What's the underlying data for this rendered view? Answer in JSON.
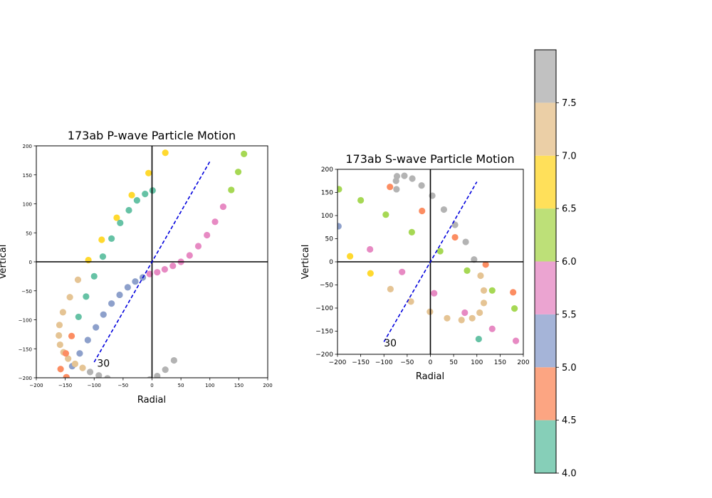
{
  "chart_data": [
    {
      "type": "scatter",
      "title": "173ab P-wave Particle Motion",
      "xlabel": "Radial",
      "ylabel": "Vertical",
      "xlim": [
        -200,
        200
      ],
      "ylim": [
        -200,
        200
      ],
      "xticks": [
        -200,
        -150,
        -100,
        -50,
        0,
        50,
        100,
        150,
        200
      ],
      "yticks": [
        -200,
        -150,
        -100,
        -50,
        0,
        50,
        100,
        150,
        200
      ],
      "xtick_labels": [
        "−200",
        "−150",
        "−100",
        "−50",
        "0",
        "50",
        "100",
        "150",
        "200"
      ],
      "ytick_labels": [
        "−200",
        "−150",
        "−100",
        "−50",
        "0",
        "50",
        "100",
        "150",
        "200"
      ],
      "angle_label": "30",
      "angle_label_pos": [
        -95,
        -175
      ],
      "angle_line": {
        "x": [
          -100,
          100
        ],
        "y": [
          -173,
          173
        ]
      },
      "points": [
        {
          "x": 23,
          "y": 188,
          "c": 6.75
        },
        {
          "x": -6,
          "y": 153,
          "c": 6.75
        },
        {
          "x": -35,
          "y": 115,
          "c": 6.75
        },
        {
          "x": -61,
          "y": 76,
          "c": 6.75
        },
        {
          "x": -87,
          "y": 38,
          "c": 6.75
        },
        {
          "x": -110,
          "y": 3,
          "c": 6.75
        },
        {
          "x": 159,
          "y": 186,
          "c": 6.25
        },
        {
          "x": 149,
          "y": 155,
          "c": 6.25
        },
        {
          "x": 137,
          "y": 124,
          "c": 6.25
        },
        {
          "x": 1,
          "y": 123,
          "c": 4.25
        },
        {
          "x": -12,
          "y": 117,
          "c": 4.25
        },
        {
          "x": -26,
          "y": 106,
          "c": 4.25
        },
        {
          "x": -40,
          "y": 89,
          "c": 4.25
        },
        {
          "x": -55,
          "y": 67,
          "c": 4.25
        },
        {
          "x": -70,
          "y": 40,
          "c": 4.25
        },
        {
          "x": -85,
          "y": 9,
          "c": 4.25
        },
        {
          "x": -100,
          "y": -25,
          "c": 4.25
        },
        {
          "x": -114,
          "y": -60,
          "c": 4.25
        },
        {
          "x": -127,
          "y": -95,
          "c": 4.25
        },
        {
          "x": 123,
          "y": 95,
          "c": 5.75
        },
        {
          "x": 109,
          "y": 69,
          "c": 5.75
        },
        {
          "x": 95,
          "y": 46,
          "c": 5.75
        },
        {
          "x": 80,
          "y": 27,
          "c": 5.75
        },
        {
          "x": 65,
          "y": 11,
          "c": 5.75
        },
        {
          "x": 50,
          "y": 0,
          "c": 5.75
        },
        {
          "x": 36,
          "y": -7,
          "c": 5.75
        },
        {
          "x": 22,
          "y": -13,
          "c": 5.75
        },
        {
          "x": 9,
          "y": -18,
          "c": 5.75
        },
        {
          "x": -4,
          "y": -21,
          "c": 5.75
        },
        {
          "x": -16,
          "y": -27,
          "c": 5.25
        },
        {
          "x": -29,
          "y": -34,
          "c": 5.25
        },
        {
          "x": -42,
          "y": -44,
          "c": 5.25
        },
        {
          "x": -56,
          "y": -57,
          "c": 5.25
        },
        {
          "x": -70,
          "y": -72,
          "c": 5.25
        },
        {
          "x": -84,
          "y": -91,
          "c": 5.25
        },
        {
          "x": -97,
          "y": -113,
          "c": 5.25
        },
        {
          "x": -111,
          "y": -135,
          "c": 5.25
        },
        {
          "x": -125,
          "y": -158,
          "c": 5.25
        },
        {
          "x": -138,
          "y": -180,
          "c": 5.25
        },
        {
          "x": -128,
          "y": -31,
          "c": 7.25
        },
        {
          "x": -142,
          "y": -61,
          "c": 7.25
        },
        {
          "x": -154,
          "y": -87,
          "c": 7.25
        },
        {
          "x": -160,
          "y": -109,
          "c": 7.25
        },
        {
          "x": -161,
          "y": -127,
          "c": 7.25
        },
        {
          "x": -159,
          "y": -143,
          "c": 7.25
        },
        {
          "x": -153,
          "y": -156,
          "c": 7.25
        },
        {
          "x": -145,
          "y": -167,
          "c": 7.25
        },
        {
          "x": -133,
          "y": -176,
          "c": 7.25
        },
        {
          "x": -120,
          "y": -183,
          "c": 7.25
        },
        {
          "x": -139,
          "y": -128,
          "c": 4.75
        },
        {
          "x": -149,
          "y": -158,
          "c": 4.75
        },
        {
          "x": -158,
          "y": -185,
          "c": 4.75
        },
        {
          "x": -148,
          "y": -199,
          "c": 4.75
        },
        {
          "x": 38,
          "y": -170,
          "c": 7.75
        },
        {
          "x": 23,
          "y": -186,
          "c": 7.75
        },
        {
          "x": 9,
          "y": -197,
          "c": 7.75
        },
        {
          "x": -4,
          "y": -203,
          "c": 7.75
        },
        {
          "x": -107,
          "y": -190,
          "c": 7.75
        },
        {
          "x": -92,
          "y": -196,
          "c": 7.75
        },
        {
          "x": -77,
          "y": -201,
          "c": 7.75
        }
      ]
    },
    {
      "type": "scatter",
      "title": "173ab S-wave Particle Motion",
      "xlabel": "Radial",
      "ylabel": "Vertical",
      "xlim": [
        -200,
        200
      ],
      "ylim": [
        -200,
        200
      ],
      "xticks": [
        -200,
        -150,
        -100,
        -50,
        0,
        50,
        100,
        150,
        200
      ],
      "yticks": [
        -200,
        -150,
        -100,
        -50,
        0,
        50,
        100,
        150,
        200
      ],
      "xtick_labels": [
        "−200",
        "−150",
        "−100",
        "−50",
        "0",
        "50",
        "100",
        "150",
        "200"
      ],
      "ytick_labels": [
        "−200",
        "−150",
        "−100",
        "−50",
        "0",
        "50",
        "100",
        "150",
        "200"
      ],
      "angle_label": "30",
      "angle_label_pos": [
        -100,
        -175
      ],
      "angle_line": {
        "x": [
          -100,
          100
        ],
        "y": [
          -173,
          173
        ]
      },
      "points": [
        {
          "x": -197,
          "y": 157,
          "c": 6.25
        },
        {
          "x": -150,
          "y": 133,
          "c": 6.25
        },
        {
          "x": -96,
          "y": 102,
          "c": 6.25
        },
        {
          "x": -40,
          "y": 64,
          "c": 6.25
        },
        {
          "x": 21,
          "y": 23,
          "c": 6.25
        },
        {
          "x": 79,
          "y": -19,
          "c": 6.25
        },
        {
          "x": 133,
          "y": -62,
          "c": 6.25
        },
        {
          "x": 181,
          "y": -101,
          "c": 6.25
        },
        {
          "x": -87,
          "y": 162,
          "c": 4.75
        },
        {
          "x": -18,
          "y": 110,
          "c": 4.75
        },
        {
          "x": 53,
          "y": 53,
          "c": 4.75
        },
        {
          "x": 119,
          "y": -6,
          "c": 4.75
        },
        {
          "x": 178,
          "y": -66,
          "c": 4.75
        },
        {
          "x": -198,
          "y": 77,
          "c": 5.25
        },
        {
          "x": -173,
          "y": 12,
          "c": 6.75
        },
        {
          "x": -129,
          "y": -25,
          "c": 6.75
        },
        {
          "x": -130,
          "y": 27,
          "c": 5.75
        },
        {
          "x": -61,
          "y": -22,
          "c": 5.75
        },
        {
          "x": 8,
          "y": -68,
          "c": 5.75
        },
        {
          "x": 74,
          "y": -110,
          "c": 5.75
        },
        {
          "x": 133,
          "y": -145,
          "c": 5.75
        },
        {
          "x": 184,
          "y": -171,
          "c": 5.75
        },
        {
          "x": -86,
          "y": -59,
          "c": 7.25
        },
        {
          "x": -42,
          "y": -86,
          "c": 7.25
        },
        {
          "x": -1,
          "y": -108,
          "c": 7.25
        },
        {
          "x": 36,
          "y": -122,
          "c": 7.25
        },
        {
          "x": 67,
          "y": -126,
          "c": 7.25
        },
        {
          "x": 90,
          "y": -122,
          "c": 7.25
        },
        {
          "x": 106,
          "y": -110,
          "c": 7.25
        },
        {
          "x": 115,
          "y": -89,
          "c": 7.25
        },
        {
          "x": 115,
          "y": -62,
          "c": 7.25
        },
        {
          "x": 108,
          "y": -30,
          "c": 7.25
        },
        {
          "x": -72,
          "y": 185,
          "c": 7.75
        },
        {
          "x": -56,
          "y": 186,
          "c": 7.75
        },
        {
          "x": -39,
          "y": 180,
          "c": 7.75
        },
        {
          "x": -74,
          "y": 175,
          "c": 7.75
        },
        {
          "x": -73,
          "y": 157,
          "c": 7.75
        },
        {
          "x": -19,
          "y": 165,
          "c": 7.75
        },
        {
          "x": 4,
          "y": 143,
          "c": 7.75
        },
        {
          "x": 29,
          "y": 113,
          "c": 7.75
        },
        {
          "x": 53,
          "y": 80,
          "c": 7.75
        },
        {
          "x": 76,
          "y": 43,
          "c": 7.75
        },
        {
          "x": 94,
          "y": 5,
          "c": 7.75
        },
        {
          "x": 104,
          "y": -167,
          "c": 4.25
        }
      ]
    },
    {
      "type": "colorbar",
      "range": [
        4.0,
        8.0
      ],
      "tick_values": [
        4.0,
        4.5,
        5.0,
        5.5,
        6.0,
        6.5,
        7.0,
        7.5
      ],
      "tick_labels": [
        "4.0",
        "4.5",
        "5.0",
        "5.5",
        "6.0",
        "6.5",
        "7.0",
        "7.5"
      ],
      "colors": [
        "#86cfb8",
        "#fca582",
        "#a5b4d8",
        "#eba4d1",
        "#bde078",
        "#ffe05a",
        "#ebcfa6",
        "#c1c1c1"
      ]
    }
  ],
  "style": {
    "point_colors": [
      "#66c2a5",
      "#fc8d62",
      "#8da0cb",
      "#e78ac3",
      "#a6d854",
      "#ffd92f",
      "#e5c494",
      "#b3b3b3"
    ],
    "angle_line_color": "#0000dd"
  }
}
